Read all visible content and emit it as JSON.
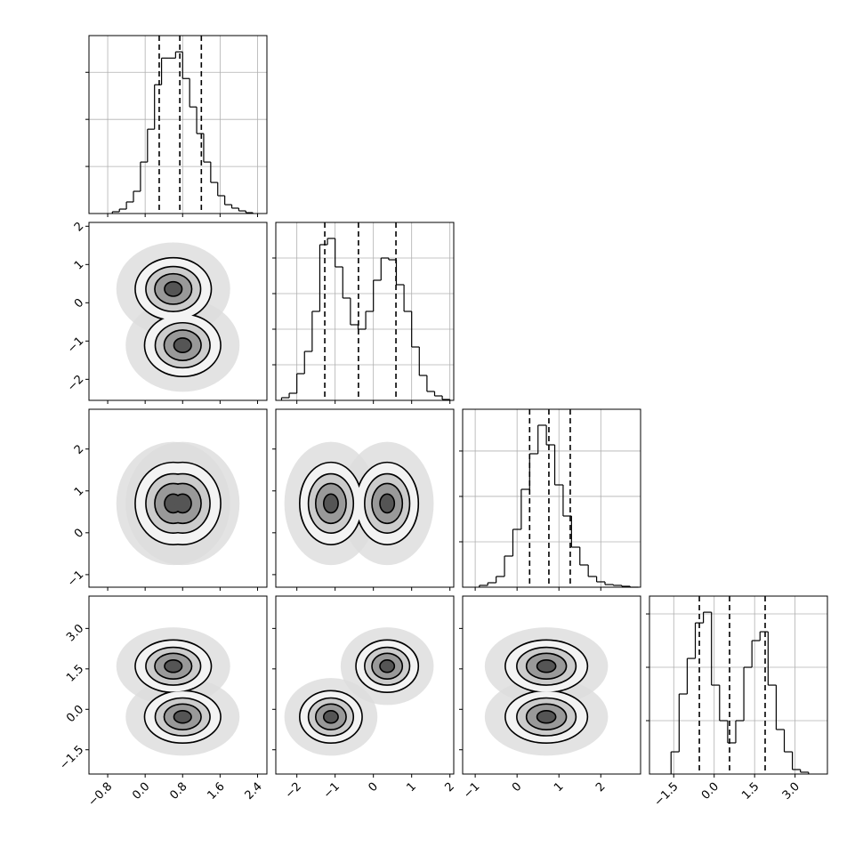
{
  "chart_data": {
    "type": "corner",
    "color": "#000000",
    "grid": true,
    "params": [
      {
        "lim": [
          -1.2,
          2.6
        ],
        "ticks": [
          {
            "value": -0.8,
            "label": "−0.8"
          },
          {
            "value": 0,
            "label": "0.0"
          },
          0.8,
          1.6,
          2.4
        ]
      },
      {
        "lim": [
          -2.55,
          2.1
        ],
        "ticks": [
          {
            "value": -2,
            "label": "−2"
          },
          {
            "value": -1,
            "label": "−1"
          },
          0,
          1,
          2
        ]
      },
      {
        "lim": [
          -1.3,
          2.95
        ],
        "ticks": [
          {
            "value": -1,
            "label": "−1"
          },
          0,
          1,
          2
        ]
      },
      {
        "lim": [
          -2.4,
          4.2
        ],
        "ticks": [
          {
            "value": -1.5,
            "label": "−1.5"
          },
          {
            "value": 0,
            "label": "0.0"
          },
          1.5,
          {
            "value": 3,
            "label": "3.0"
          }
        ]
      }
    ],
    "histograms": [
      {
        "bins": [
          -0.7,
          -0.55,
          -0.4,
          -0.25,
          -0.1,
          0.05,
          0.2,
          0.35,
          0.5,
          0.65,
          0.8,
          0.95,
          1.1,
          1.25,
          1.4,
          1.55,
          1.7,
          1.85,
          2.0,
          2.15,
          2.3
        ],
        "counts": [
          19,
          47,
          123,
          236,
          547,
          896,
          1368,
          1651,
          1651,
          1717,
          1434,
          1132,
          849,
          547,
          330,
          189,
          94,
          57,
          28,
          9
        ],
        "ylim": [
          0,
          1890
        ],
        "yticks": [
          500,
          1000,
          1500
        ],
        "quantiles": [
          0.3,
          0.74,
          1.2
        ]
      },
      {
        "bins": [
          -2.4,
          -2.2,
          -2.0,
          -1.8,
          -1.6,
          -1.4,
          -1.2,
          -1.0,
          -0.8,
          -0.6,
          -0.4,
          -0.2,
          0,
          0.2,
          0.4,
          0.6,
          0.8,
          1.0,
          1.2,
          1.4,
          1.6,
          1.8,
          2.0
        ],
        "counts": [
          15,
          40,
          150,
          275,
          500,
          875,
          910,
          750,
          575,
          425,
          400,
          500,
          675,
          800,
          790,
          650,
          500,
          300,
          140,
          50,
          25,
          5
        ],
        "ylim": [
          0,
          1000
        ],
        "yticks": [
          200,
          400,
          600,
          800
        ],
        "quantiles": [
          -1.27,
          -0.39,
          0.59
        ]
      },
      {
        "bins": [
          -0.9,
          -0.7,
          -0.5,
          -0.3,
          -0.1,
          0.1,
          0.3,
          0.5,
          0.7,
          0.9,
          1.1,
          1.3,
          1.5,
          1.7,
          1.9,
          2.1,
          2.3,
          2.5,
          2.7,
          2.9
        ],
        "counts": [
          20,
          49,
          118,
          343,
          637,
          1078,
          1470,
          1784,
          1568,
          1127,
          784,
          441,
          245,
          118,
          59,
          29,
          20,
          10,
          0
        ],
        "ylim": [
          0,
          1960
        ],
        "yticks": [
          500,
          1000,
          1500
        ],
        "quantiles": [
          0.3,
          0.76,
          1.27
        ]
      },
      {
        "bins": [
          -1.6,
          -1.3,
          -1.0,
          -0.7,
          -0.4,
          -0.1,
          0.2,
          0.5,
          0.8,
          1.1,
          1.4,
          1.7,
          2.0,
          2.3,
          2.6,
          2.9,
          3.2,
          3.5
        ],
        "counts": [
          208,
          750,
          1083,
          1416,
          1516,
          833,
          500,
          292,
          500,
          1000,
          1250,
          1333,
          833,
          417,
          208,
          42,
          17
        ],
        "ylim": [
          0,
          1667
        ],
        "yticks": [
          500,
          1000,
          1500
        ],
        "quantiles": [
          -0.55,
          0.57,
          1.89
        ]
      }
    ],
    "cloud": 3.2,
    "cloud_color": "#dcdcdc",
    "levels": [
      2.1,
      1.5,
      1.0,
      0.45
    ],
    "fills": [
      "#f3f3f3",
      "#cccccc",
      "#999999",
      "#555555"
    ],
    "pairs": [
      {
        "modes": [
          [
            0.6,
            0.36
          ],
          [
            0.8,
            -1.11
          ]
        ],
        "sd": [
          0.38,
          0.38
        ]
      },
      {
        "modes": [
          [
            0.6,
            0.7
          ],
          [
            0.8,
            0.7
          ]
        ],
        "sd": [
          0.38,
          0.46
        ]
      },
      {
        "modes": [
          [
            0.36,
            0.7
          ],
          [
            -1.11,
            0.7
          ]
        ],
        "sd": [
          0.38,
          0.46
        ]
      },
      {
        "modes": [
          [
            0.6,
            1.6
          ],
          [
            0.8,
            -0.28
          ]
        ],
        "sd": [
          0.38,
          0.45
        ]
      },
      {
        "modes": [
          [
            0.36,
            1.6
          ],
          [
            -1.11,
            -0.28
          ]
        ],
        "sd": [
          0.38,
          0.45
        ]
      },
      {
        "modes": [
          [
            0.7,
            1.6
          ],
          [
            0.7,
            -0.28
          ]
        ],
        "sd": [
          0.46,
          0.45
        ]
      }
    ]
  }
}
